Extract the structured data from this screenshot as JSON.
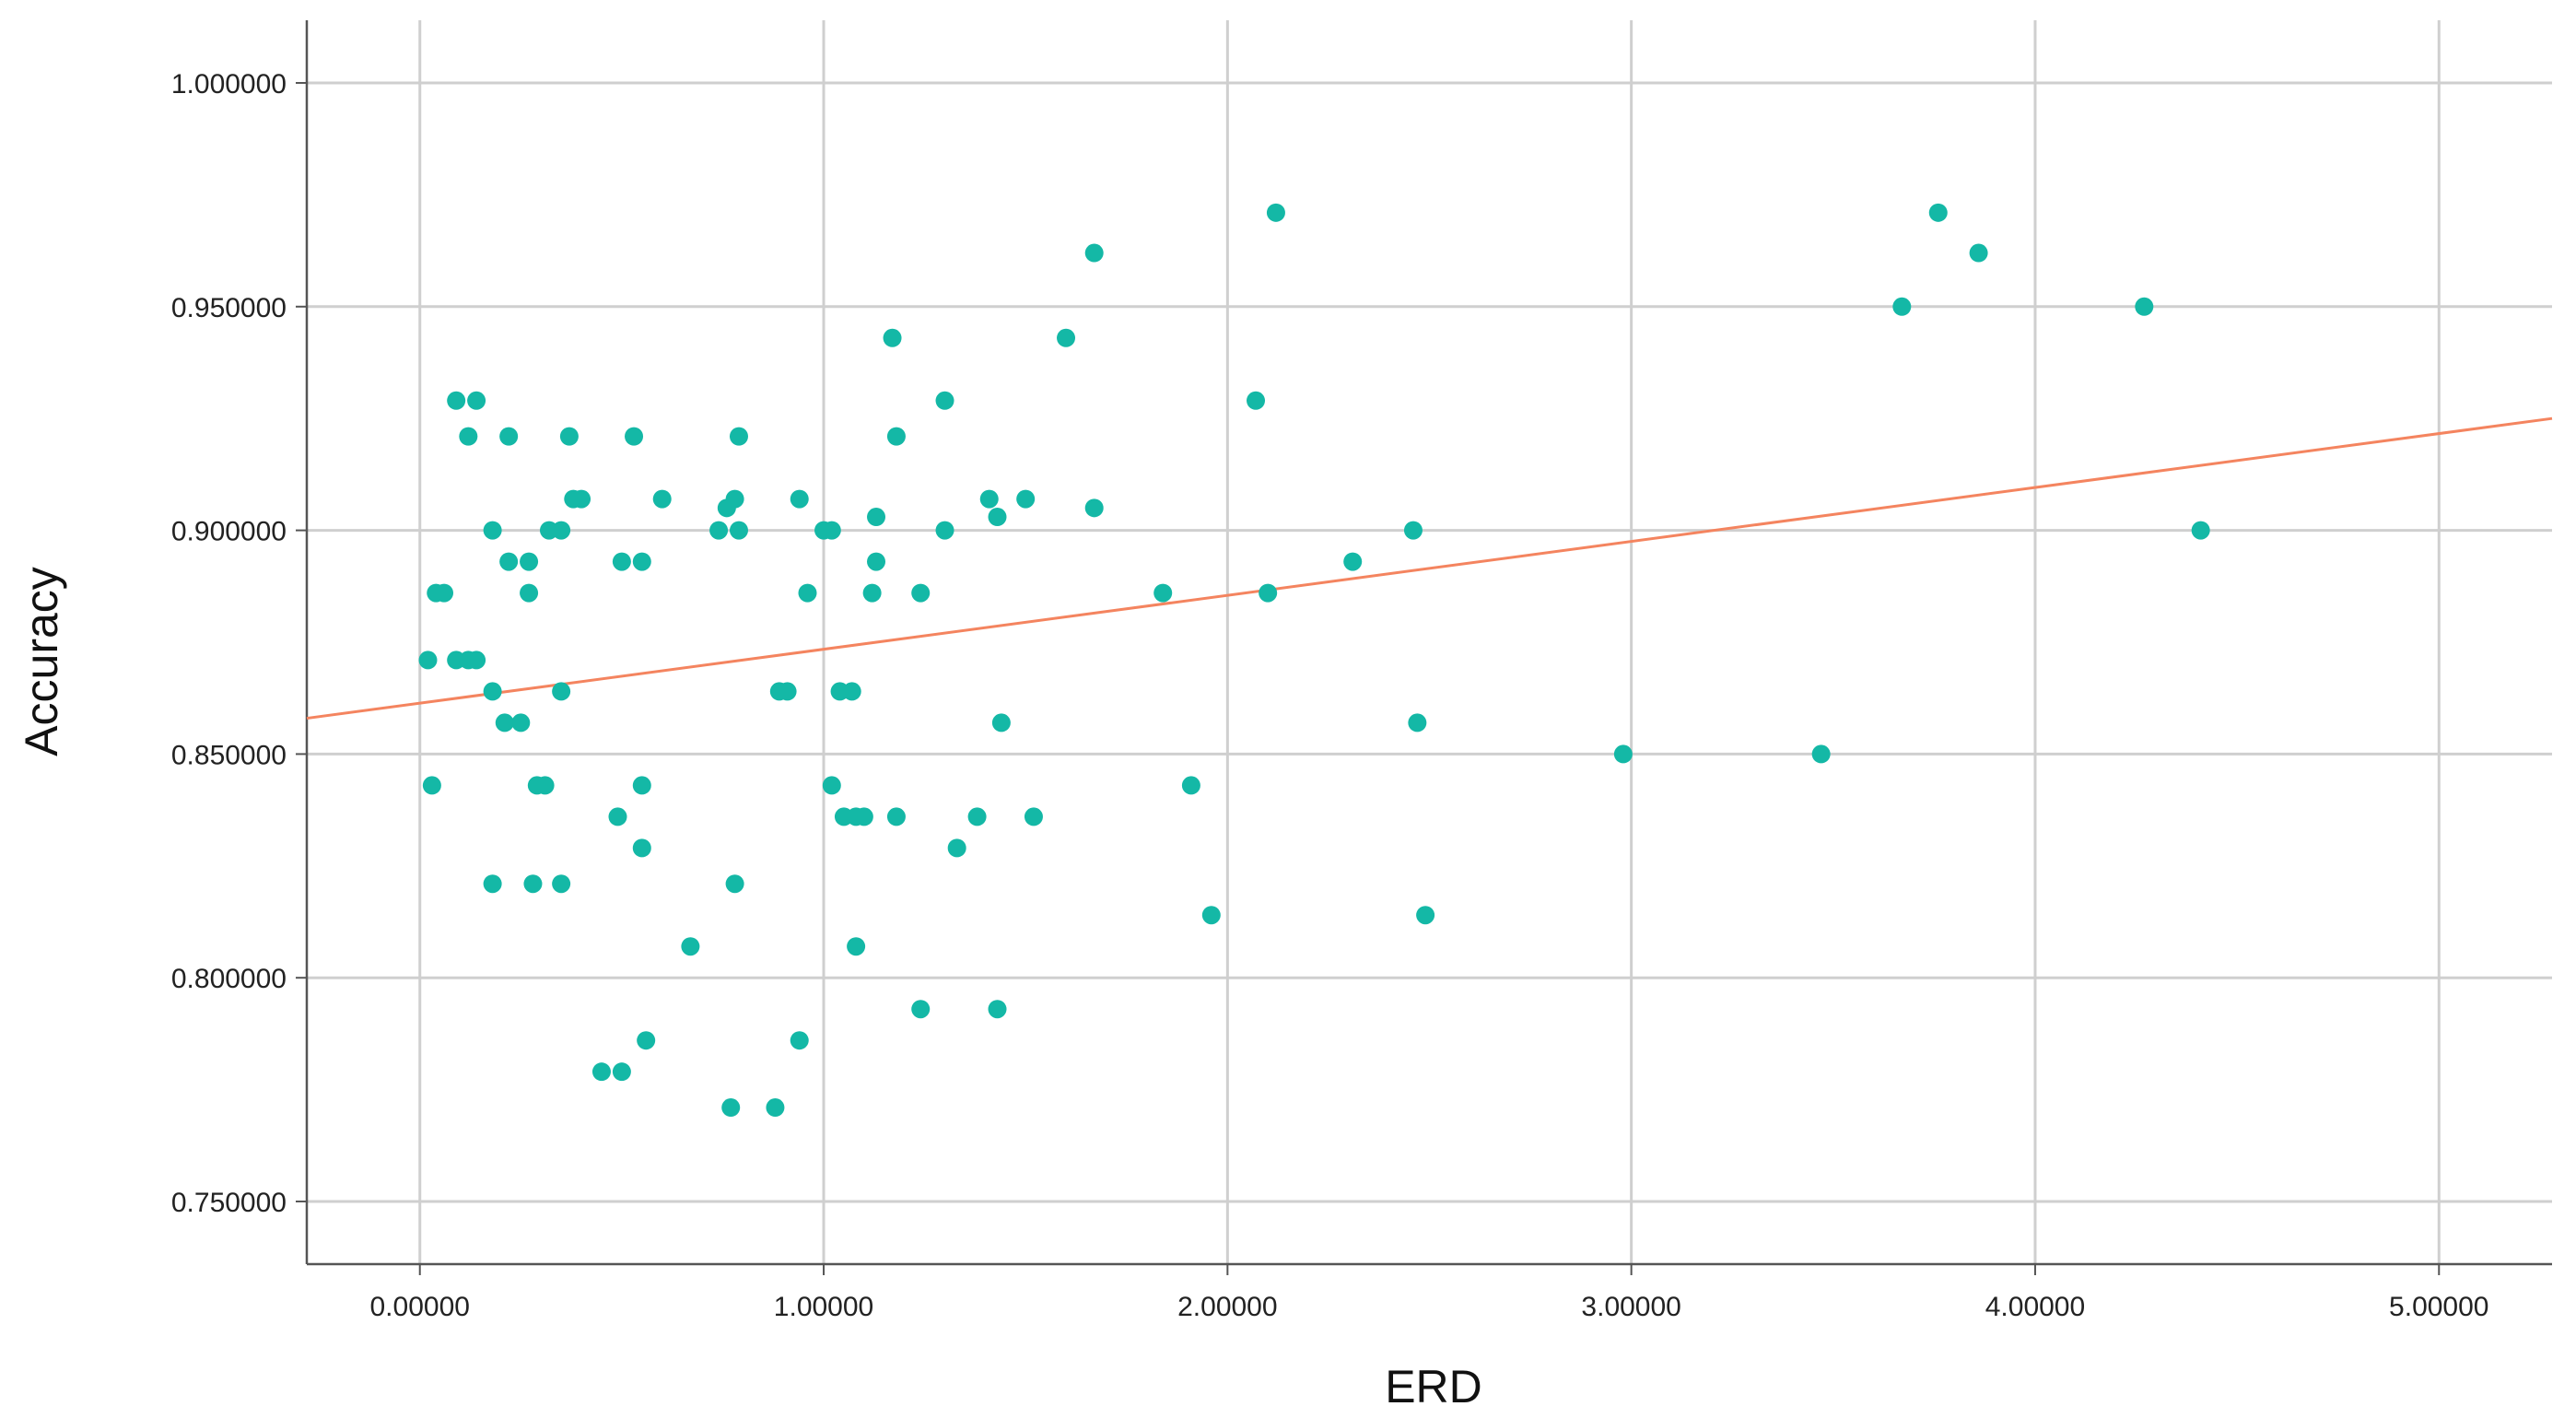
{
  "chart_data": {
    "type": "scatter",
    "title": "",
    "xlabel": "ERD",
    "ylabel": "Accuracy",
    "xlim": [
      -0.28,
      5.28
    ],
    "ylim": [
      0.736,
      1.014
    ],
    "grid": true,
    "x_ticks": [
      0,
      1,
      2,
      3,
      4,
      5
    ],
    "x_tick_labels": [
      "0.00000",
      "1.00000",
      "2.00000",
      "3.00000",
      "4.00000",
      "5.00000"
    ],
    "y_ticks": [
      0.75,
      0.8,
      0.85,
      0.9,
      0.95,
      1.0
    ],
    "y_tick_labels": [
      "0.750000",
      "0.800000",
      "0.850000",
      "0.900000",
      "0.950000",
      "1.000000"
    ],
    "point_color": "#14b8a6",
    "fit_line_color": "#f4845f",
    "fit_line": {
      "x": [
        -0.28,
        5.28
      ],
      "y": [
        0.858,
        0.925
      ]
    },
    "points": [
      {
        "x": 0.02,
        "y": 0.871
      },
      {
        "x": 0.03,
        "y": 0.843
      },
      {
        "x": 0.04,
        "y": 0.886
      },
      {
        "x": 0.06,
        "y": 0.886
      },
      {
        "x": 0.09,
        "y": 0.871
      },
      {
        "x": 0.09,
        "y": 0.929
      },
      {
        "x": 0.12,
        "y": 0.871
      },
      {
        "x": 0.12,
        "y": 0.921
      },
      {
        "x": 0.14,
        "y": 0.929
      },
      {
        "x": 0.14,
        "y": 0.871
      },
      {
        "x": 0.18,
        "y": 0.9
      },
      {
        "x": 0.18,
        "y": 0.864
      },
      {
        "x": 0.18,
        "y": 0.821
      },
      {
        "x": 0.21,
        "y": 0.857
      },
      {
        "x": 0.22,
        "y": 0.893
      },
      {
        "x": 0.22,
        "y": 0.921
      },
      {
        "x": 0.25,
        "y": 0.857
      },
      {
        "x": 0.27,
        "y": 0.886
      },
      {
        "x": 0.27,
        "y": 0.893
      },
      {
        "x": 0.28,
        "y": 0.821
      },
      {
        "x": 0.29,
        "y": 0.843
      },
      {
        "x": 0.31,
        "y": 0.843
      },
      {
        "x": 0.32,
        "y": 0.9
      },
      {
        "x": 0.35,
        "y": 0.9
      },
      {
        "x": 0.35,
        "y": 0.864
      },
      {
        "x": 0.35,
        "y": 0.821
      },
      {
        "x": 0.37,
        "y": 0.921
      },
      {
        "x": 0.38,
        "y": 0.907
      },
      {
        "x": 0.4,
        "y": 0.907
      },
      {
        "x": 0.45,
        "y": 0.779
      },
      {
        "x": 0.49,
        "y": 0.836
      },
      {
        "x": 0.5,
        "y": 0.893
      },
      {
        "x": 0.5,
        "y": 0.779
      },
      {
        "x": 0.53,
        "y": 0.921
      },
      {
        "x": 0.55,
        "y": 0.843
      },
      {
        "x": 0.55,
        "y": 0.893
      },
      {
        "x": 0.55,
        "y": 0.829
      },
      {
        "x": 0.56,
        "y": 0.786
      },
      {
        "x": 0.6,
        "y": 0.907
      },
      {
        "x": 0.67,
        "y": 0.807
      },
      {
        "x": 0.74,
        "y": 0.9
      },
      {
        "x": 0.76,
        "y": 0.905
      },
      {
        "x": 0.77,
        "y": 0.771
      },
      {
        "x": 0.78,
        "y": 0.907
      },
      {
        "x": 0.78,
        "y": 0.821
      },
      {
        "x": 0.79,
        "y": 0.9
      },
      {
        "x": 0.79,
        "y": 0.921
      },
      {
        "x": 0.88,
        "y": 0.771
      },
      {
        "x": 0.89,
        "y": 0.864
      },
      {
        "x": 0.91,
        "y": 0.864
      },
      {
        "x": 0.94,
        "y": 0.907
      },
      {
        "x": 0.94,
        "y": 0.786
      },
      {
        "x": 0.96,
        "y": 0.886
      },
      {
        "x": 1.0,
        "y": 0.9
      },
      {
        "x": 1.02,
        "y": 0.9
      },
      {
        "x": 1.02,
        "y": 0.843
      },
      {
        "x": 1.04,
        "y": 0.864
      },
      {
        "x": 1.05,
        "y": 0.836
      },
      {
        "x": 1.07,
        "y": 0.864
      },
      {
        "x": 1.08,
        "y": 0.836
      },
      {
        "x": 1.08,
        "y": 0.807
      },
      {
        "x": 1.1,
        "y": 0.836
      },
      {
        "x": 1.12,
        "y": 0.886
      },
      {
        "x": 1.13,
        "y": 0.893
      },
      {
        "x": 1.13,
        "y": 0.903
      },
      {
        "x": 1.17,
        "y": 0.943
      },
      {
        "x": 1.18,
        "y": 0.921
      },
      {
        "x": 1.18,
        "y": 0.836
      },
      {
        "x": 1.24,
        "y": 0.886
      },
      {
        "x": 1.24,
        "y": 0.793
      },
      {
        "x": 1.3,
        "y": 0.929
      },
      {
        "x": 1.3,
        "y": 0.9
      },
      {
        "x": 1.33,
        "y": 0.829
      },
      {
        "x": 1.38,
        "y": 0.836
      },
      {
        "x": 1.41,
        "y": 0.907
      },
      {
        "x": 1.43,
        "y": 0.903
      },
      {
        "x": 1.43,
        "y": 0.793
      },
      {
        "x": 1.44,
        "y": 0.857
      },
      {
        "x": 1.5,
        "y": 0.907
      },
      {
        "x": 1.52,
        "y": 0.836
      },
      {
        "x": 1.6,
        "y": 0.943
      },
      {
        "x": 1.67,
        "y": 0.962
      },
      {
        "x": 1.67,
        "y": 0.905
      },
      {
        "x": 1.84,
        "y": 0.886
      },
      {
        "x": 1.91,
        "y": 0.843
      },
      {
        "x": 1.96,
        "y": 0.814
      },
      {
        "x": 2.07,
        "y": 0.929
      },
      {
        "x": 2.1,
        "y": 0.886
      },
      {
        "x": 2.12,
        "y": 0.971
      },
      {
        "x": 2.31,
        "y": 0.893
      },
      {
        "x": 2.46,
        "y": 0.9
      },
      {
        "x": 2.47,
        "y": 0.857
      },
      {
        "x": 2.49,
        "y": 0.814
      },
      {
        "x": 2.98,
        "y": 0.85
      },
      {
        "x": 3.47,
        "y": 0.85
      },
      {
        "x": 3.67,
        "y": 0.95
      },
      {
        "x": 3.76,
        "y": 0.971
      },
      {
        "x": 3.86,
        "y": 0.962
      },
      {
        "x": 4.27,
        "y": 0.95
      },
      {
        "x": 4.41,
        "y": 0.9
      }
    ]
  }
}
